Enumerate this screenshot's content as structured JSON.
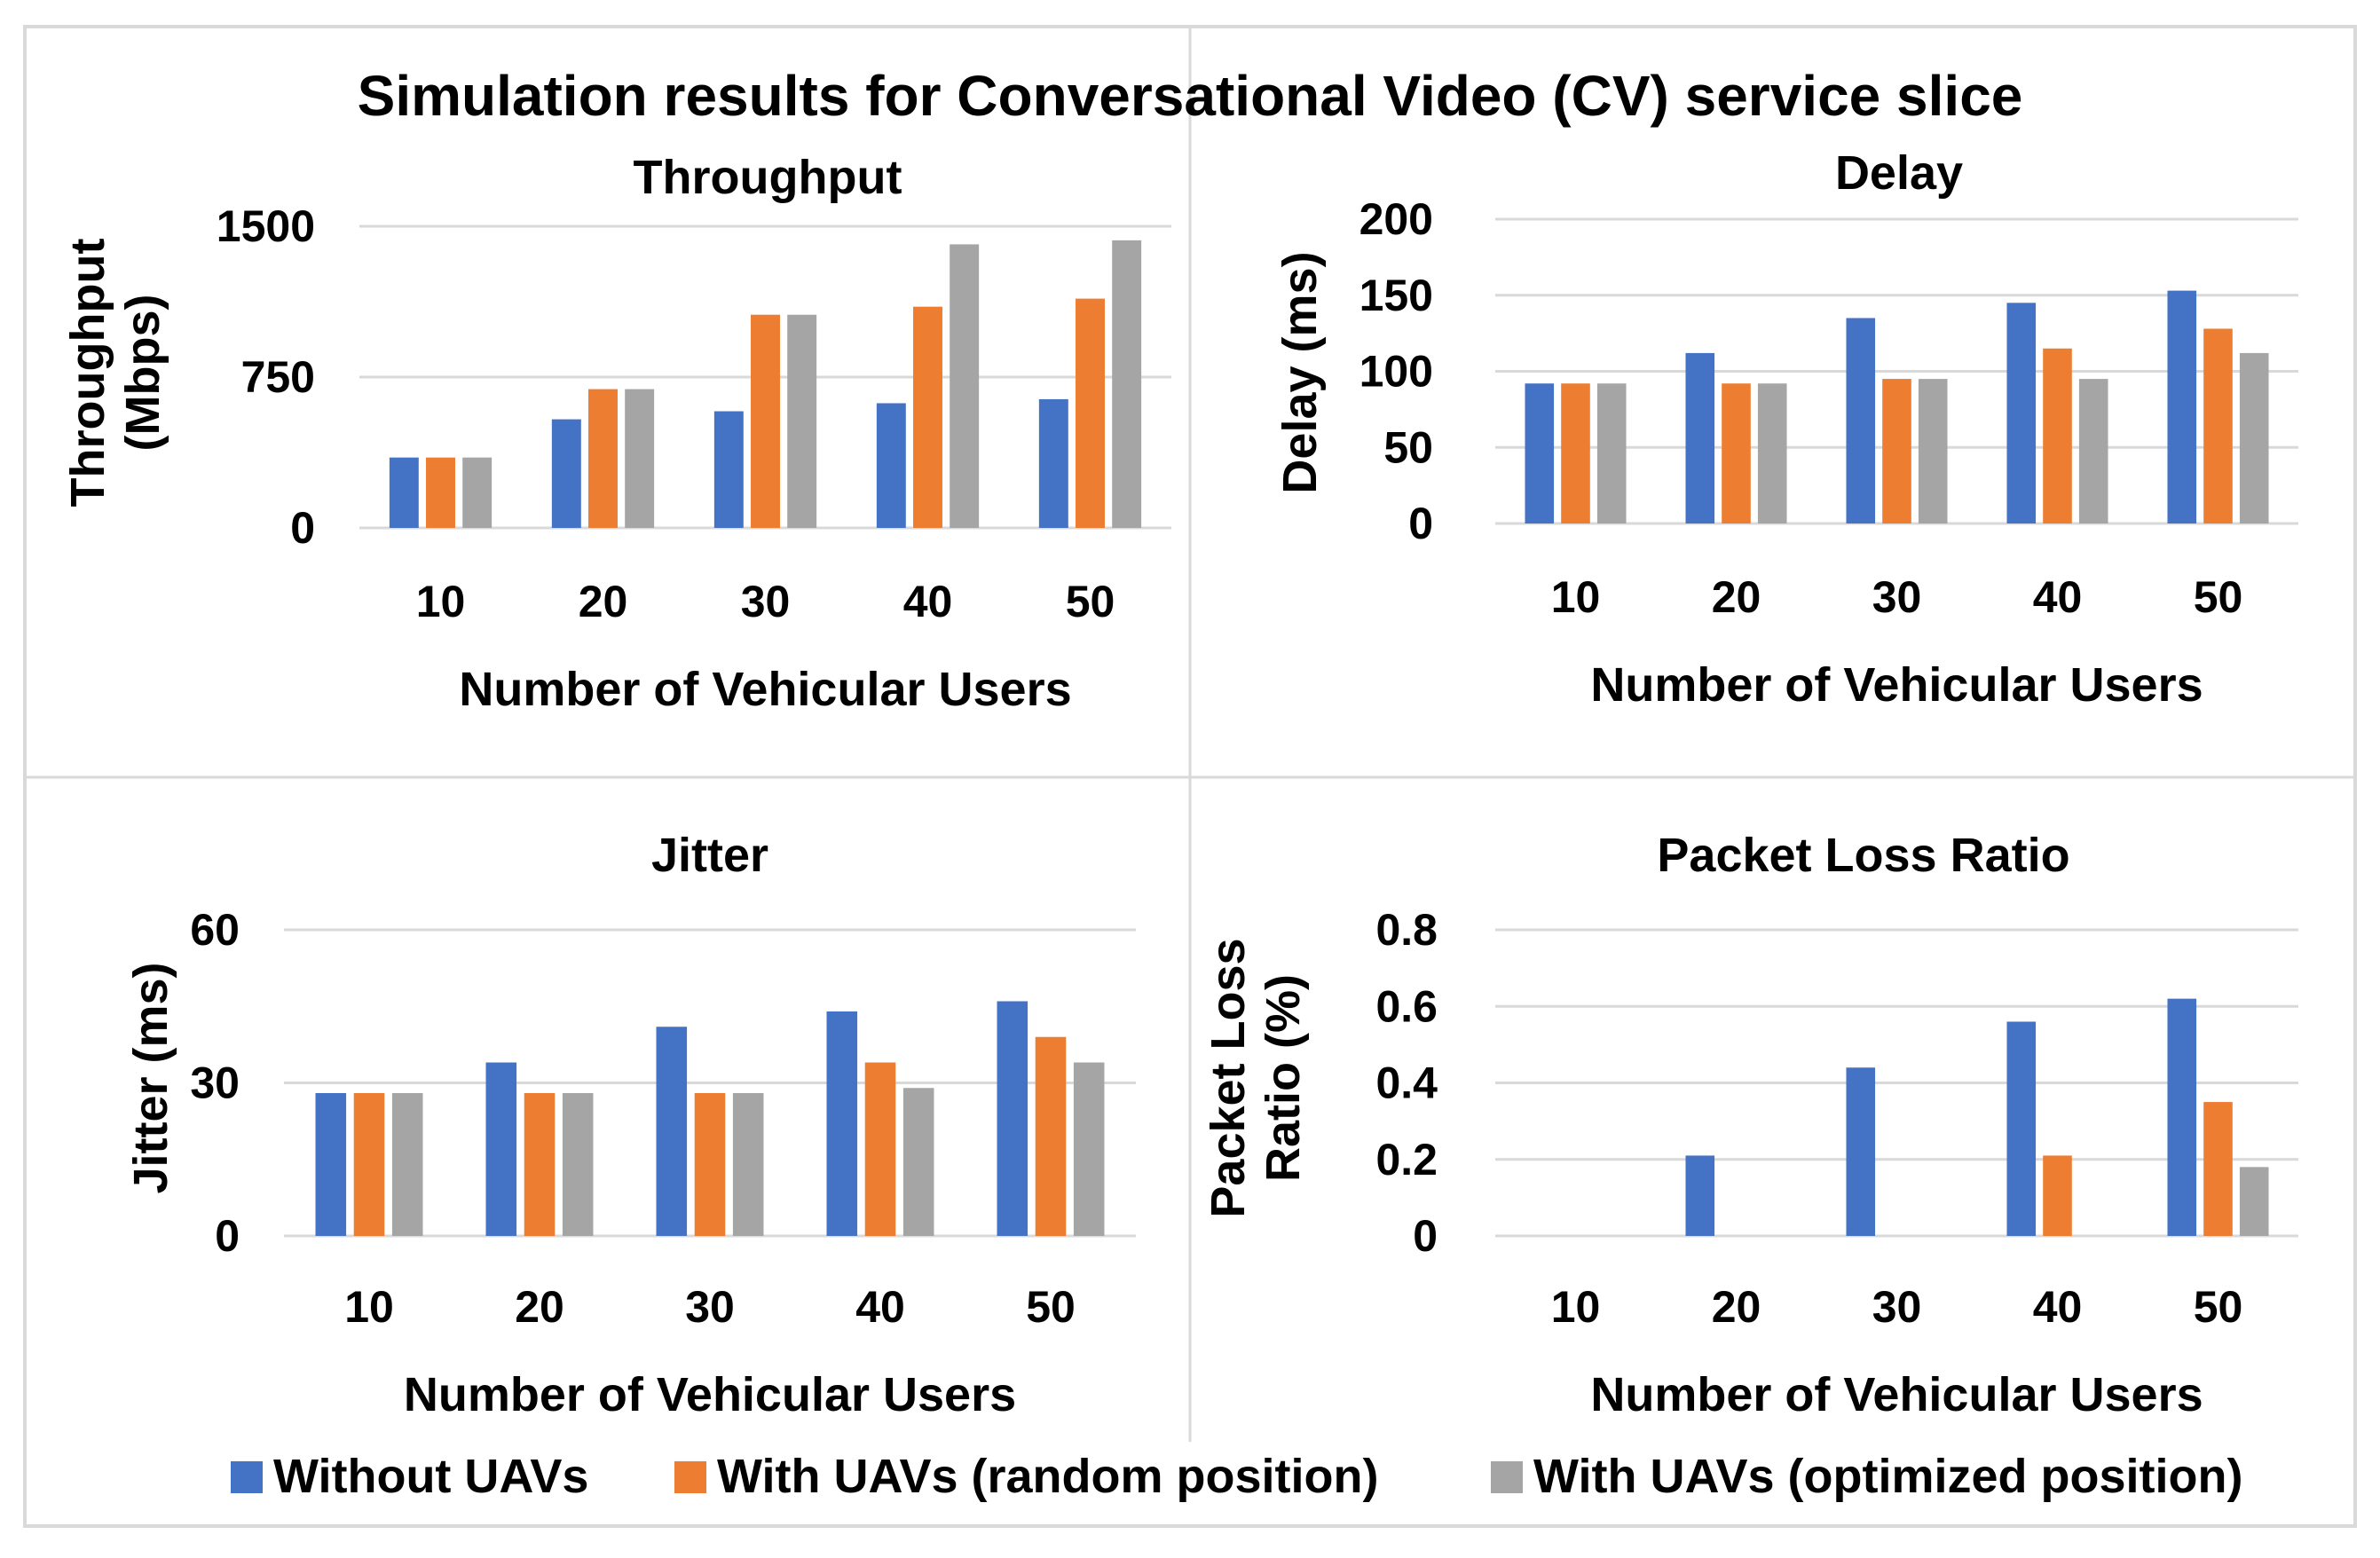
{
  "figure": {
    "title": "Simulation results for Conversational Video (CV) service slice",
    "legend": {
      "placement": "bottom",
      "entries": [
        {
          "label": "Without UAVs",
          "color": "#4472C4"
        },
        {
          "label": "With UAVs (random position)",
          "color": "#ED7D31"
        },
        {
          "label": "With UAVs (optimized position)",
          "color": "#A5A5A5"
        }
      ]
    }
  },
  "chart_data": [
    {
      "type": "bar",
      "title": "Throughput",
      "xlabel": "Number of Vehicular Users",
      "ylabel": [
        "Throughput",
        "(Mbps)"
      ],
      "categories": [
        "10",
        "20",
        "30",
        "40",
        "50"
      ],
      "ylim": [
        0,
        1500
      ],
      "yticks": [
        "0",
        "750",
        "1500"
      ],
      "grid": true,
      "series": [
        {
          "name": "Without UAVs",
          "color": "#4472C4",
          "values": [
            350,
            540,
            580,
            620,
            640
          ]
        },
        {
          "name": "With UAVs (random position)",
          "color": "#ED7D31",
          "values": [
            350,
            690,
            1060,
            1100,
            1140
          ]
        },
        {
          "name": "With UAVs (optimized position)",
          "color": "#A5A5A5",
          "values": [
            350,
            690,
            1060,
            1410,
            1430
          ]
        }
      ]
    },
    {
      "type": "bar",
      "title": "Delay",
      "xlabel": "Number of Vehicular Users",
      "ylabel": [
        "Delay (ms)"
      ],
      "categories": [
        "10",
        "20",
        "30",
        "40",
        "50"
      ],
      "ylim": [
        0,
        200
      ],
      "yticks": [
        "0",
        "50",
        "100",
        "150",
        "200"
      ],
      "grid": true,
      "series": [
        {
          "name": "Without UAVs",
          "color": "#4472C4",
          "values": [
            92,
            112,
            135,
            145,
            153
          ]
        },
        {
          "name": "With UAVs (random position)",
          "color": "#ED7D31",
          "values": [
            92,
            92,
            95,
            115,
            128
          ]
        },
        {
          "name": "With UAVs (optimized position)",
          "color": "#A5A5A5",
          "values": [
            92,
            92,
            95,
            95,
            112
          ]
        }
      ]
    },
    {
      "type": "bar",
      "title": "Jitter",
      "xlabel": "Number of Vehicular Users",
      "ylabel": [
        "Jitter (ms)"
      ],
      "categories": [
        "10",
        "20",
        "30",
        "40",
        "50"
      ],
      "ylim": [
        0,
        60
      ],
      "yticks": [
        "0",
        "30",
        "60"
      ],
      "grid": true,
      "series": [
        {
          "name": "Without UAVs",
          "color": "#4472C4",
          "values": [
            28,
            34,
            41,
            44,
            46
          ]
        },
        {
          "name": "With UAVs (random position)",
          "color": "#ED7D31",
          "values": [
            28,
            28,
            28,
            34,
            39
          ]
        },
        {
          "name": "With UAVs (optimized position)",
          "color": "#A5A5A5",
          "values": [
            28,
            28,
            28,
            29,
            34
          ]
        }
      ]
    },
    {
      "type": "bar",
      "title": "Packet Loss Ratio",
      "xlabel": "Number of Vehicular Users",
      "ylabel": [
        "Packet Loss",
        "Ratio (%)"
      ],
      "categories": [
        "10",
        "20",
        "30",
        "40",
        "50"
      ],
      "ylim": [
        0,
        0.8
      ],
      "yticks": [
        "0",
        "0.2",
        "0.4",
        "0.6",
        "0.8"
      ],
      "grid": true,
      "series": [
        {
          "name": "Without UAVs",
          "color": "#4472C4",
          "values": [
            0,
            0.21,
            0.44,
            0.56,
            0.62
          ]
        },
        {
          "name": "With UAVs (random position)",
          "color": "#ED7D31",
          "values": [
            0,
            0,
            0,
            0.21,
            0.35
          ]
        },
        {
          "name": "With UAVs (optimized position)",
          "color": "#A5A5A5",
          "values": [
            0,
            0,
            0,
            0,
            0.18
          ]
        }
      ]
    }
  ]
}
